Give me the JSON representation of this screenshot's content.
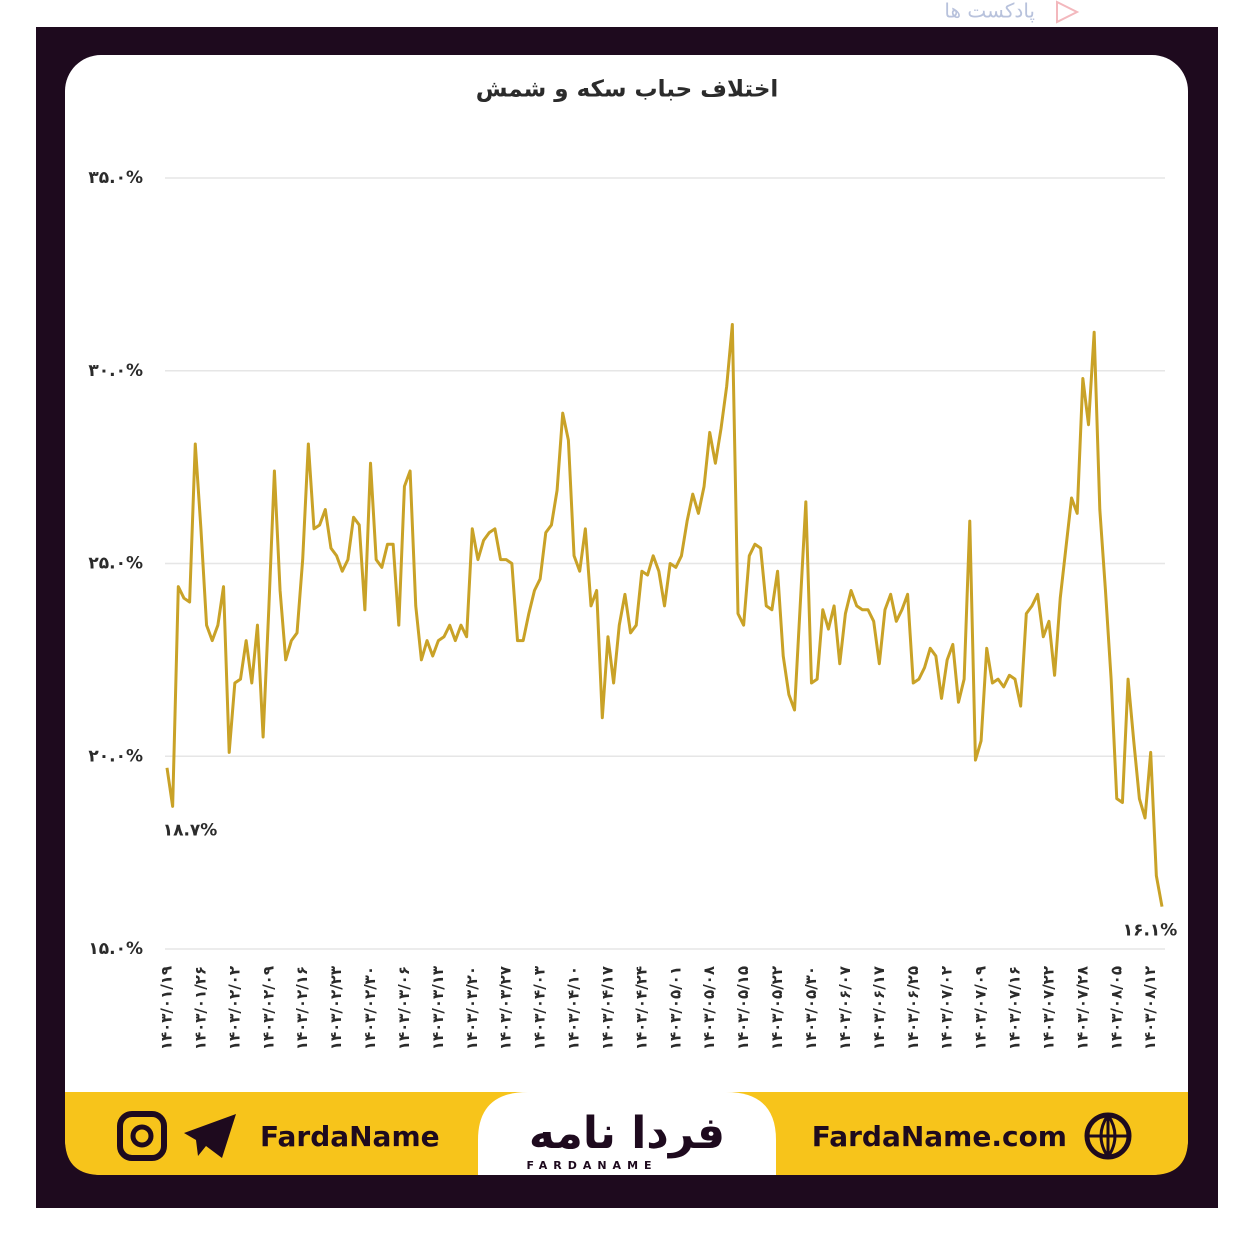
{
  "top_link": "پادکست ها",
  "chart_data": {
    "type": "line",
    "title": "اختلاف حباب سکه و شمش",
    "categories": [
      "۱۴۰۳/۰۱/۱۹",
      null,
      null,
      null,
      null,
      null,
      "۱۴۰۳/۰۱/۲۶",
      null,
      null,
      null,
      null,
      null,
      "۱۴۰۳/۰۲/۰۲",
      null,
      null,
      null,
      null,
      null,
      "۱۴۰۳/۰۲/۰۹",
      null,
      null,
      null,
      null,
      null,
      "۱۴۰۳/۰۲/۱۶",
      null,
      null,
      null,
      null,
      null,
      "۱۴۰۳/۰۲/۲۳",
      null,
      null,
      null,
      null,
      null,
      "۱۴۰۳/۰۲/۳۰",
      null,
      null,
      null,
      null,
      null,
      "۱۴۰۳/۰۳/۰۶",
      null,
      null,
      null,
      null,
      null,
      "۱۴۰۳/۰۳/۱۳",
      null,
      null,
      null,
      null,
      null,
      "۱۴۰۳/۰۳/۲۰",
      null,
      null,
      null,
      null,
      null,
      "۱۴۰۳/۰۳/۲۷",
      null,
      null,
      null,
      null,
      null,
      "۱۴۰۳/۰۴/۰۳",
      null,
      null,
      null,
      null,
      null,
      "۱۴۰۳/۰۴/۱۰",
      null,
      null,
      null,
      null,
      null,
      "۱۴۰۳/۰۴/۱۷",
      null,
      null,
      null,
      null,
      null,
      "۱۴۰۳/۰۴/۲۴",
      null,
      null,
      null,
      null,
      null,
      "۱۴۰۳/۰۵/۰۱",
      null,
      null,
      null,
      null,
      null,
      "۱۴۰۳/۰۵/۰۸",
      null,
      null,
      null,
      null,
      null,
      "۱۴۰۳/۰۵/۱۵",
      null,
      null,
      null,
      null,
      null,
      "۱۴۰۳/۰۵/۲۲",
      null,
      null,
      null,
      null,
      null,
      "۱۴۰۳/۰۵/۳۰",
      null,
      null,
      null,
      null,
      null,
      "۱۴۰۳/۰۶/۰۷",
      null,
      null,
      null,
      null,
      null,
      "۱۴۰۳/۰۶/۱۷",
      null,
      null,
      null,
      null,
      null,
      "۱۴۰۳/۰۶/۲۵",
      null,
      null,
      null,
      null,
      null,
      "۱۴۰۳/۰۷/۰۲",
      null,
      null,
      null,
      null,
      null,
      "۱۴۰۳/۰۷/۰۹",
      null,
      null,
      null,
      null,
      null,
      "۱۴۰۳/۰۷/۱۶",
      null,
      null,
      null,
      null,
      null,
      "۱۴۰۳/۰۷/۲۲",
      null,
      null,
      null,
      null,
      null,
      "۱۴۰۳/۰۷/۲۸",
      null,
      null,
      null,
      null,
      null,
      "۱۴۰۳/۰۸/۰۵",
      null,
      null,
      null,
      null,
      null,
      "۱۴۰۳/۰۸/۱۲",
      null,
      null
    ],
    "values": [
      19.7,
      18.7,
      24.4,
      24.1,
      24.0,
      28.1,
      25.9,
      23.4,
      23.0,
      23.4,
      24.4,
      20.1,
      21.9,
      22.0,
      23.0,
      21.9,
      23.4,
      20.5,
      23.8,
      27.4,
      24.3,
      22.5,
      23.0,
      23.2,
      25.1,
      28.1,
      25.9,
      26.0,
      26.4,
      25.4,
      25.2,
      24.8,
      25.1,
      26.2,
      26.0,
      23.8,
      27.6,
      25.1,
      24.9,
      25.5,
      25.5,
      23.4,
      27.0,
      27.4,
      23.9,
      22.5,
      23.0,
      22.6,
      23.0,
      23.1,
      23.4,
      23.0,
      23.4,
      23.1,
      25.9,
      25.1,
      25.6,
      25.8,
      25.9,
      25.1,
      25.1,
      25.0,
      23.0,
      23.0,
      23.7,
      24.3,
      24.6,
      25.8,
      26.0,
      26.9,
      28.9,
      28.2,
      25.2,
      24.8,
      25.9,
      23.9,
      24.3,
      21.0,
      23.1,
      21.9,
      23.4,
      24.2,
      23.2,
      23.4,
      24.8,
      24.7,
      25.2,
      24.8,
      23.9,
      25.0,
      24.9,
      25.2,
      26.1,
      26.8,
      26.3,
      27.0,
      28.4,
      27.6,
      28.5,
      29.6,
      31.2,
      23.7,
      23.4,
      25.2,
      25.5,
      25.4,
      23.9,
      23.8,
      24.8,
      22.6,
      21.6,
      21.2,
      23.9,
      26.6,
      21.9,
      22.0,
      23.8,
      23.3,
      23.9,
      22.4,
      23.7,
      24.3,
      23.9,
      23.8,
      23.8,
      23.5,
      22.4,
      23.8,
      24.2,
      23.5,
      23.8,
      24.2,
      21.9,
      22.0,
      22.3,
      22.8,
      22.6,
      21.5,
      22.5,
      22.9,
      21.4,
      22.0,
      26.1,
      19.9,
      20.4,
      22.8,
      21.9,
      22.0,
      21.8,
      22.1,
      22.0,
      21.3,
      23.7,
      23.9,
      24.2,
      23.1,
      23.5,
      22.1,
      24.1,
      25.4,
      26.7,
      26.3,
      29.8,
      28.6,
      31.0,
      26.4,
      24.3,
      22.0,
      18.9,
      18.8,
      22.0,
      20.4,
      18.9,
      18.4,
      20.1,
      16.9,
      16.1
    ],
    "value_labels": [
      null,
      "۱۸.۷%",
      null,
      null,
      null,
      null,
      null,
      null,
      null,
      null,
      null,
      null,
      null,
      null,
      null,
      null,
      null,
      null,
      null,
      null,
      null,
      null,
      null,
      null,
      null,
      null,
      null,
      null,
      null,
      null,
      null,
      null,
      null,
      null,
      null,
      null,
      null,
      null,
      null,
      null,
      null,
      null,
      null,
      null,
      null,
      null,
      null,
      null,
      null,
      null,
      null,
      null,
      null,
      null,
      null,
      null,
      null,
      null,
      null,
      null,
      null,
      null,
      null,
      null,
      null,
      null,
      null,
      null,
      null,
      null,
      null,
      null,
      null,
      null,
      null,
      null,
      null,
      null,
      null,
      null,
      null,
      null,
      null,
      null,
      null,
      null,
      null,
      null,
      null,
      null,
      null,
      null,
      null,
      null,
      null,
      null,
      null,
      null,
      null,
      null,
      null,
      null,
      null,
      null,
      null,
      null,
      null,
      null,
      null,
      null,
      null,
      null,
      null,
      null,
      null,
      null,
      null,
      null,
      null,
      null,
      null,
      null,
      null,
      null,
      null,
      null,
      null,
      null,
      null,
      null,
      null,
      null,
      null,
      null,
      null,
      null,
      null,
      null,
      null,
      null,
      null,
      null,
      null,
      null,
      null,
      null,
      null,
      null,
      null,
      null,
      null,
      null,
      null,
      null,
      null,
      null,
      null,
      null,
      null,
      null,
      null,
      null,
      null,
      null,
      null,
      null,
      null,
      null,
      null,
      null,
      null,
      null,
      null,
      null,
      null,
      null,
      "۱۶.۱%"
    ],
    "color": "#c9a227",
    "ylim": [
      15,
      35
    ],
    "yticks": [
      {
        "value": 15,
        "label": "۱۵.۰%"
      },
      {
        "value": 20,
        "label": "۲۰.۰%"
      },
      {
        "value": 25,
        "label": "۲۵.۰%"
      },
      {
        "value": 30,
        "label": "۳۰.۰%"
      },
      {
        "value": 35,
        "label": "۳۵.۰%"
      }
    ],
    "grid": true
  },
  "footer": {
    "social": "FardaName",
    "logo": "فردا نامه",
    "logo_latin": "FARDANAME",
    "website": "FardaName.com"
  }
}
